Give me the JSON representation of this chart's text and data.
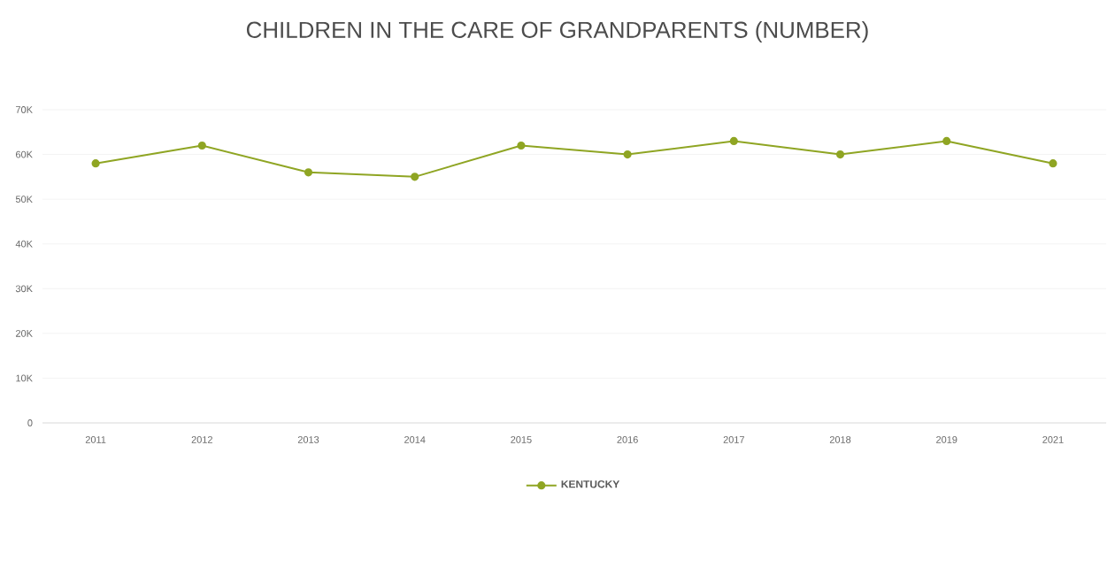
{
  "chart_data": {
    "type": "line",
    "title": "CHILDREN IN THE CARE OF GRANDPARENTS (NUMBER)",
    "categories": [
      "2011",
      "2012",
      "2013",
      "2014",
      "2015",
      "2016",
      "2017",
      "2018",
      "2019",
      "2021"
    ],
    "series": [
      {
        "name": "KENTUCKY",
        "color": "#8fa523",
        "values": [
          58000,
          62000,
          56000,
          55000,
          62000,
          60000,
          63000,
          60000,
          63000,
          58000
        ]
      }
    ],
    "ylim": [
      0,
      70000
    ],
    "yticks": [
      0,
      {
        "value": 10000,
        "label": "10K"
      },
      {
        "value": 20000,
        "label": "20K"
      },
      {
        "value": 30000,
        "label": "30K"
      },
      {
        "value": 40000,
        "label": "40K"
      },
      {
        "value": 50000,
        "label": "50K"
      },
      {
        "value": 60000,
        "label": "60K"
      },
      {
        "value": 70000,
        "label": "70K"
      }
    ],
    "grid": "y",
    "legend": "bottom",
    "marker": "circle",
    "line_style": "solid"
  }
}
